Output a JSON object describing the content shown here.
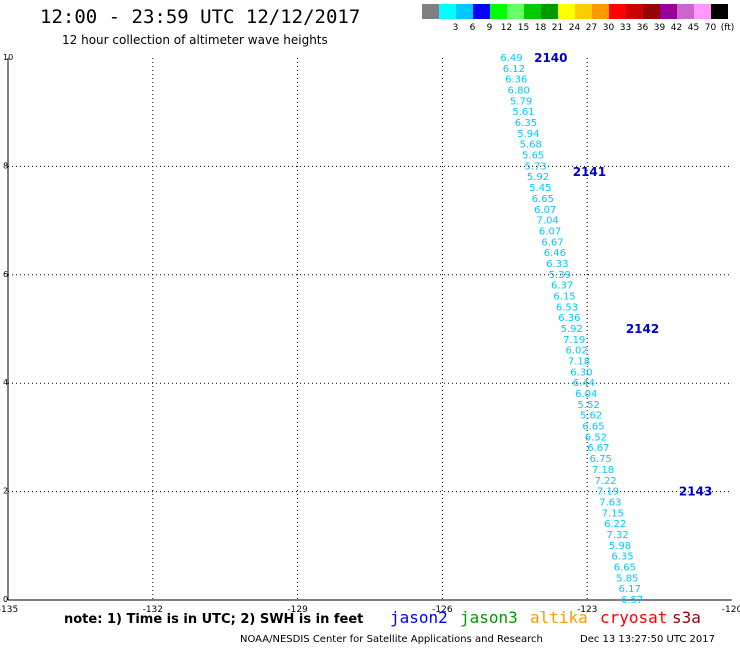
{
  "header": {
    "title": "12:00 - 23:59 UTC 12/12/2017",
    "subtitle": "12 hour collection of altimeter wave heights"
  },
  "color_scale": {
    "items": [
      {
        "label": "",
        "color": "#808080"
      },
      {
        "label": "3",
        "color": "#00ffff"
      },
      {
        "label": "6",
        "color": "#00c8ff"
      },
      {
        "label": "9",
        "color": "#0000ff"
      },
      {
        "label": "12",
        "color": "#00ff00"
      },
      {
        "label": "15",
        "color": "#66ff66"
      },
      {
        "label": "18",
        "color": "#00cc00"
      },
      {
        "label": "21",
        "color": "#009900"
      },
      {
        "label": "24",
        "color": "#ffff00"
      },
      {
        "label": "27",
        "color": "#ffcc00"
      },
      {
        "label": "30",
        "color": "#ff9900"
      },
      {
        "label": "33",
        "color": "#ff0000"
      },
      {
        "label": "36",
        "color": "#cc0000"
      },
      {
        "label": "39",
        "color": "#990000"
      },
      {
        "label": "42",
        "color": "#990099"
      },
      {
        "label": "45",
        "color": "#cc66cc"
      },
      {
        "label": "70",
        "color": "#ff99ff"
      },
      {
        "label": "(ft)",
        "color": "#000000"
      }
    ]
  },
  "footer": {
    "note": "note: 1) Time is in UTC; 2) SWH is in feet",
    "satellites": [
      {
        "name": "jason2",
        "color": "#0000ff"
      },
      {
        "name": "jason3",
        "color": "#009900"
      },
      {
        "name": "altika",
        "color": "#ff9900"
      },
      {
        "name": "cryosat",
        "color": "#ff0000"
      },
      {
        "name": "s3a",
        "color": "#990000"
      }
    ],
    "credit": "NOAA/NESDIS Center for Satellite Applications and Research",
    "timestamp": "Dec 13 13:27:50 UTC 2017"
  },
  "chart_data": {
    "type": "scatter",
    "xlim": [
      -135,
      -120
    ],
    "ylim": [
      0,
      10
    ],
    "x_ticks": [
      "-135",
      "-132",
      "-129",
      "-126",
      "-123",
      "-120"
    ],
    "y_ticks": [
      "0",
      "2",
      "4",
      "6",
      "8",
      "10"
    ],
    "grid": true,
    "point_color": "#00c8ff",
    "time_color": "#0000cc",
    "times": [
      {
        "label": "2140",
        "x": -124.1,
        "y": 10.0
      },
      {
        "label": "2141",
        "x": -123.3,
        "y": 7.9
      },
      {
        "label": "2142",
        "x": -122.2,
        "y": 5.0
      },
      {
        "label": "2143",
        "x": -121.1,
        "y": 2.0
      }
    ],
    "points": [
      {
        "label": "6.49",
        "x": -124.8,
        "y": 10.0
      },
      {
        "label": "6.12",
        "x": -124.75,
        "y": 9.8
      },
      {
        "label": "6.36",
        "x": -124.7,
        "y": 9.6
      },
      {
        "label": "6.80",
        "x": -124.65,
        "y": 9.4
      },
      {
        "label": "5.79",
        "x": -124.6,
        "y": 9.2
      },
      {
        "label": "5.61",
        "x": -124.55,
        "y": 9.0
      },
      {
        "label": "6.35",
        "x": -124.5,
        "y": 8.8
      },
      {
        "label": "5.94",
        "x": -124.45,
        "y": 8.6
      },
      {
        "label": "5.68",
        "x": -124.4,
        "y": 8.4
      },
      {
        "label": "5.65",
        "x": -124.35,
        "y": 8.2
      },
      {
        "label": "5.73",
        "x": -124.3,
        "y": 8.0
      },
      {
        "label": "5.92",
        "x": -124.25,
        "y": 7.8
      },
      {
        "label": "5.45",
        "x": -124.2,
        "y": 7.6
      },
      {
        "label": "6.65",
        "x": -124.15,
        "y": 7.4
      },
      {
        "label": "6.07",
        "x": -124.1,
        "y": 7.2
      },
      {
        "label": "7.04",
        "x": -124.05,
        "y": 7.0
      },
      {
        "label": "6.07",
        "x": -124.0,
        "y": 6.8
      },
      {
        "label": "6.67",
        "x": -123.95,
        "y": 6.6
      },
      {
        "label": "6.46",
        "x": -123.9,
        "y": 6.4
      },
      {
        "label": "6.33",
        "x": -123.85,
        "y": 6.2
      },
      {
        "label": "5.39",
        "x": -123.8,
        "y": 6.0
      },
      {
        "label": "6.37",
        "x": -123.75,
        "y": 5.8
      },
      {
        "label": "6.15",
        "x": -123.7,
        "y": 5.6
      },
      {
        "label": "6.53",
        "x": -123.65,
        "y": 5.4
      },
      {
        "label": "6.36",
        "x": -123.6,
        "y": 5.2
      },
      {
        "label": "5.92",
        "x": -123.55,
        "y": 5.0
      },
      {
        "label": "7.19",
        "x": -123.5,
        "y": 4.8
      },
      {
        "label": "6.02",
        "x": -123.45,
        "y": 4.6
      },
      {
        "label": "7.18",
        "x": -123.4,
        "y": 4.4
      },
      {
        "label": "6.30",
        "x": -123.35,
        "y": 4.2
      },
      {
        "label": "6.44",
        "x": -123.3,
        "y": 4.0
      },
      {
        "label": "6.04",
        "x": -123.25,
        "y": 3.8
      },
      {
        "label": "5.52",
        "x": -123.2,
        "y": 3.6
      },
      {
        "label": "5.62",
        "x": -123.15,
        "y": 3.4
      },
      {
        "label": "6.65",
        "x": -123.1,
        "y": 3.2
      },
      {
        "label": "6.52",
        "x": -123.05,
        "y": 3.0
      },
      {
        "label": "6.67",
        "x": -123.0,
        "y": 2.8
      },
      {
        "label": "6.75",
        "x": -122.95,
        "y": 2.6
      },
      {
        "label": "7.18",
        "x": -122.9,
        "y": 2.4
      },
      {
        "label": "7.22",
        "x": -122.85,
        "y": 2.2
      },
      {
        "label": "7.19",
        "x": -122.8,
        "y": 2.0
      },
      {
        "label": "7.63",
        "x": -122.75,
        "y": 1.8
      },
      {
        "label": "7.15",
        "x": -122.7,
        "y": 1.6
      },
      {
        "label": "6.22",
        "x": -122.65,
        "y": 1.4
      },
      {
        "label": "7.32",
        "x": -122.6,
        "y": 1.2
      },
      {
        "label": "5.98",
        "x": -122.55,
        "y": 1.0
      },
      {
        "label": "6.35",
        "x": -122.5,
        "y": 0.8
      },
      {
        "label": "6.65",
        "x": -122.45,
        "y": 0.6
      },
      {
        "label": "5.85",
        "x": -122.4,
        "y": 0.4
      },
      {
        "label": "6.17",
        "x": -122.35,
        "y": 0.2
      },
      {
        "label": "6.57",
        "x": -122.3,
        "y": 0.0
      }
    ]
  }
}
